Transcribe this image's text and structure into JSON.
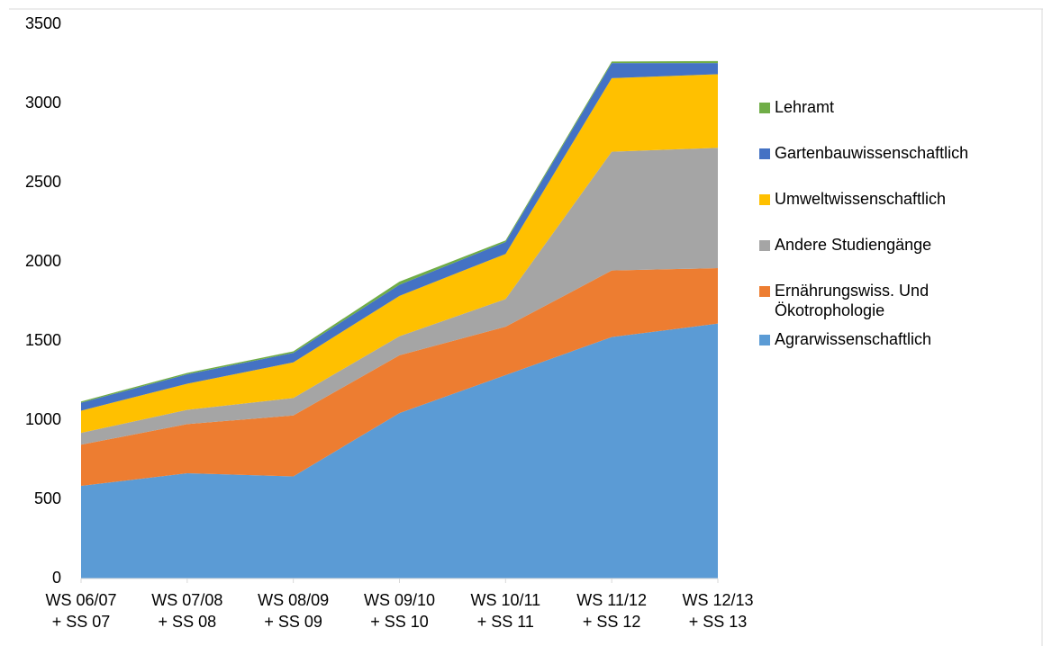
{
  "chart_data": {
    "type": "stacked_area",
    "categories": [
      "WS 06/07\n+ SS 07",
      "WS 07/08\n+ SS 08",
      "WS 08/09\n+ SS 09",
      "WS 09/10\n+ SS 10",
      "WS 10/11\n+ SS 11",
      "WS 11/12\n+ SS 12",
      "WS 12/13\n+ SS 13"
    ],
    "series": [
      {
        "name": "Agrarwissenschaftlich",
        "color": "#5b9bd5",
        "values": [
          585,
          665,
          645,
          1045,
          1285,
          1525,
          1610
        ]
      },
      {
        "name": "Ernährungswiss. Und Ökotrophologie",
        "color": "#ed7d31",
        "values": [
          260,
          310,
          385,
          365,
          305,
          420,
          350
        ]
      },
      {
        "name": "Andere Studiengänge",
        "color": "#a5a5a5",
        "values": [
          75,
          90,
          110,
          120,
          175,
          750,
          760
        ]
      },
      {
        "name": "Umweltwissenschaftlich",
        "color": "#ffc000",
        "values": [
          140,
          165,
          225,
          255,
          285,
          465,
          465
        ]
      },
      {
        "name": "Gartenbauwissenschaftlich",
        "color": "#4472c4",
        "values": [
          50,
          60,
          60,
          70,
          75,
          95,
          70
        ]
      },
      {
        "name": "Lehramt",
        "color": "#70ad47",
        "values": [
          8,
          8,
          10,
          20,
          10,
          10,
          13
        ]
      }
    ],
    "ylim": [
      0,
      3500
    ],
    "yticks": [
      0,
      500,
      1000,
      1500,
      2000,
      2500,
      3000,
      3500
    ],
    "legend": "right"
  }
}
